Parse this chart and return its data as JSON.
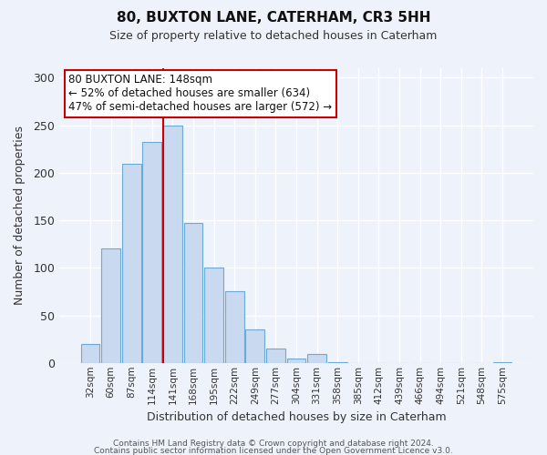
{
  "title": "80, BUXTON LANE, CATERHAM, CR3 5HH",
  "subtitle": "Size of property relative to detached houses in Caterham",
  "xlabel": "Distribution of detached houses by size in Caterham",
  "ylabel": "Number of detached properties",
  "bar_labels": [
    "32sqm",
    "60sqm",
    "87sqm",
    "114sqm",
    "141sqm",
    "168sqm",
    "195sqm",
    "222sqm",
    "249sqm",
    "277sqm",
    "304sqm",
    "331sqm",
    "358sqm",
    "385sqm",
    "412sqm",
    "439sqm",
    "466sqm",
    "494sqm",
    "521sqm",
    "548sqm",
    "575sqm"
  ],
  "bar_values": [
    20,
    120,
    209,
    232,
    250,
    147,
    100,
    75,
    35,
    15,
    5,
    9,
    1,
    0,
    0,
    0,
    0,
    0,
    0,
    0,
    1
  ],
  "bar_color": "#c8d9f0",
  "bar_edge_color": "#6aaad4",
  "ylim": [
    0,
    310
  ],
  "yticks": [
    0,
    50,
    100,
    150,
    200,
    250,
    300
  ],
  "property_line_color": "#cc0000",
  "annotation_title": "80 BUXTON LANE: 148sqm",
  "annotation_line1": "← 52% of detached houses are smaller (634)",
  "annotation_line2": "47% of semi-detached houses are larger (572) →",
  "annotation_box_facecolor": "#ffffff",
  "annotation_box_edgecolor": "#cc0000",
  "footer1": "Contains HM Land Registry data © Crown copyright and database right 2024.",
  "footer2": "Contains public sector information licensed under the Open Government Licence v3.0.",
  "bg_color": "#eef2fa",
  "plot_bg_color": "#eef2fa",
  "grid_color": "#ffffff",
  "title_fontsize": 11,
  "subtitle_fontsize": 9,
  "ylabel_fontsize": 9,
  "xlabel_fontsize": 9,
  "ytick_fontsize": 9,
  "xtick_fontsize": 7.5,
  "annotation_fontsize": 8.5,
  "footer_fontsize": 6.5
}
